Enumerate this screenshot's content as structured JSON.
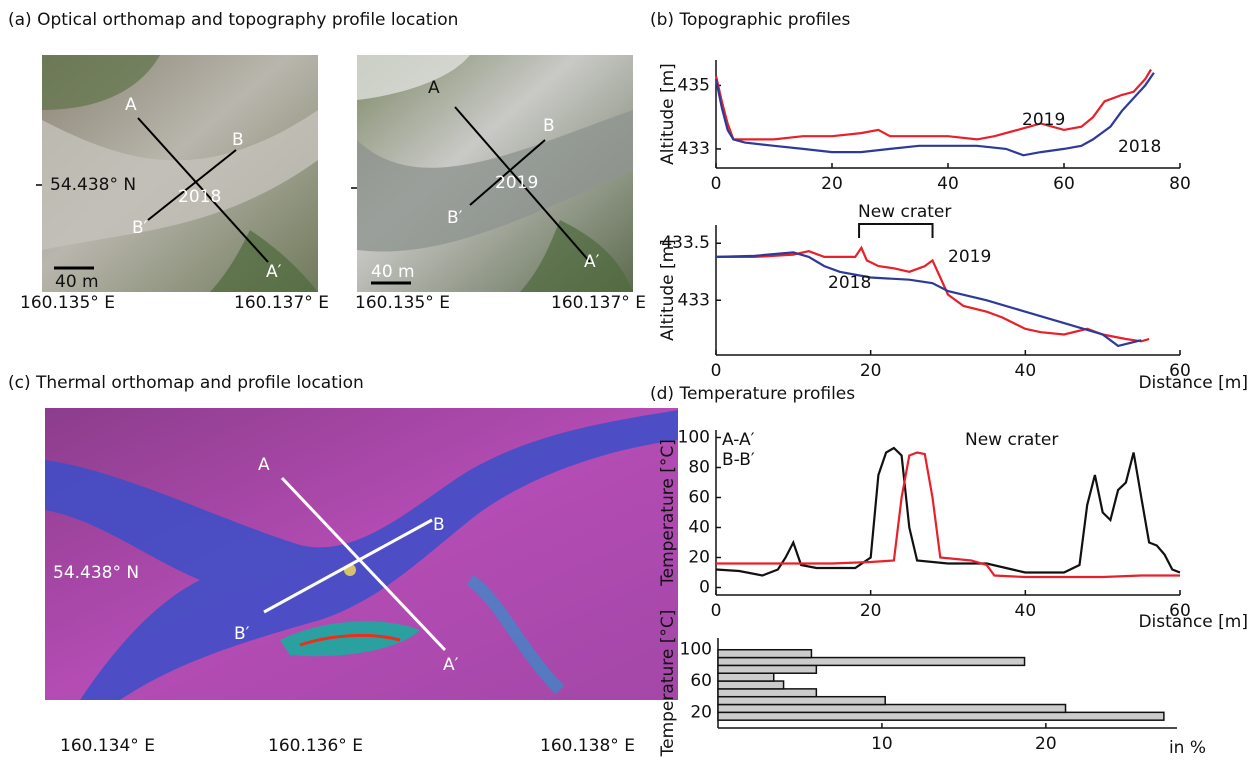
{
  "figure": {
    "panels": [
      "(a)  Optical orthomap and topography profile location",
      "(b)  Topographic profiles",
      "(c)  Thermal orthomap and profile location",
      "(d)  Temperature profiles"
    ]
  },
  "optical_maps": [
    {
      "year": "2018",
      "lat": "54.438° N",
      "scale": "40 m",
      "lon_labels": [
        "160.135° E",
        "160.137° E"
      ],
      "points": [
        "A",
        "B",
        "B′",
        "A′"
      ]
    },
    {
      "year": "2019",
      "scale": "40 m",
      "lon_labels": [
        "160.135° E",
        "160.137° E"
      ],
      "points": [
        "A",
        "B",
        "B′",
        "A′"
      ]
    }
  ],
  "thermal_map": {
    "lat": "54.438° N",
    "lon_labels": [
      "160.134° E",
      "160.136° E",
      "160.138° E"
    ],
    "points": [
      "A",
      "B",
      "B′",
      "A′"
    ]
  },
  "chart_data": [
    {
      "type": "line",
      "ylabel": "Altitude [m]",
      "xlim": [
        0,
        80
      ],
      "ylim": [
        432.4,
        435.8
      ],
      "xticks": [
        0,
        20,
        40,
        60,
        80
      ],
      "yticks": [
        433,
        435
      ],
      "series": [
        {
          "name": "2019",
          "color": "#e8202a",
          "x": [
            0,
            1,
            2,
            3,
            5,
            10,
            15,
            20,
            25,
            28,
            30,
            35,
            40,
            45,
            48,
            52,
            56,
            58,
            60,
            63,
            65,
            67,
            70,
            72,
            74,
            75
          ],
          "values": [
            435.3,
            434.5,
            433.8,
            433.3,
            433.3,
            433.3,
            433.4,
            433.4,
            433.5,
            433.6,
            433.4,
            433.4,
            433.4,
            433.3,
            433.4,
            433.6,
            433.8,
            433.7,
            433.6,
            433.7,
            434.0,
            434.5,
            434.7,
            434.8,
            435.2,
            435.5
          ]
        },
        {
          "name": "2018",
          "color": "#2e3a9a",
          "x": [
            0,
            1,
            2,
            3,
            5,
            10,
            15,
            20,
            25,
            30,
            35,
            40,
            45,
            50,
            53,
            56,
            60,
            63,
            65,
            68,
            70,
            72,
            74,
            75.5
          ],
          "values": [
            435.2,
            434.3,
            433.6,
            433.3,
            433.2,
            433.1,
            433.0,
            432.9,
            432.9,
            433.0,
            433.1,
            433.1,
            433.1,
            433.0,
            432.8,
            432.9,
            433.0,
            433.1,
            433.3,
            433.7,
            434.2,
            434.6,
            435.0,
            435.4
          ]
        }
      ]
    },
    {
      "type": "line",
      "ylabel": "Altitude [m]",
      "xlabel": "Distance [m]",
      "annotation": "New crater",
      "xlim": [
        0,
        60
      ],
      "ylim": [
        432.52,
        433.66
      ],
      "xticks": [
        0,
        20,
        40,
        60
      ],
      "yticks": [
        433,
        433.5
      ],
      "series": [
        {
          "name": "2019",
          "color": "#e8202a",
          "x": [
            0,
            5,
            10,
            12,
            14,
            16,
            18,
            18.8,
            19.5,
            21,
            23,
            25,
            27,
            28,
            29,
            30,
            32,
            35,
            37,
            40,
            42,
            45,
            48,
            50,
            53,
            55,
            56
          ],
          "values": [
            433.38,
            433.38,
            433.4,
            433.43,
            433.38,
            433.38,
            433.38,
            433.46,
            433.35,
            433.3,
            433.28,
            433.25,
            433.3,
            433.35,
            433.2,
            433.05,
            432.95,
            432.9,
            432.85,
            432.75,
            432.72,
            432.7,
            432.75,
            432.7,
            432.66,
            432.64,
            432.66
          ]
        },
        {
          "name": "2018",
          "color": "#2e3a9a",
          "x": [
            0,
            5,
            10,
            12,
            14,
            16,
            20,
            25,
            28,
            30,
            35,
            40,
            45,
            50,
            52,
            55
          ],
          "values": [
            433.38,
            433.39,
            433.42,
            433.38,
            433.3,
            433.25,
            433.2,
            433.18,
            433.15,
            433.08,
            433.0,
            432.9,
            432.8,
            432.7,
            432.6,
            432.65
          ]
        }
      ]
    },
    {
      "type": "line",
      "ylabel": "Temperature [°C]",
      "xlabel": "Distance [m]",
      "annotation": "New crater",
      "xlim": [
        0,
        60
      ],
      "ylim": [
        -5,
        105
      ],
      "xticks": [
        0,
        20,
        40,
        60
      ],
      "yticks": [
        0,
        20,
        40,
        60,
        80,
        100
      ],
      "series": [
        {
          "name": "A-A′",
          "color": "#111111",
          "x": [
            0,
            3,
            6,
            8,
            9,
            10,
            11,
            13,
            18,
            20,
            21,
            22,
            23,
            24,
            25,
            26,
            30,
            35,
            40,
            45,
            47,
            48,
            49,
            50,
            51,
            52,
            53,
            54,
            55,
            56,
            57,
            58,
            59,
            60
          ],
          "values": [
            12,
            11,
            8,
            12,
            20,
            30,
            15,
            13,
            13,
            20,
            75,
            90,
            93,
            88,
            40,
            18,
            16,
            16,
            10,
            10,
            15,
            55,
            75,
            50,
            45,
            65,
            70,
            90,
            60,
            30,
            28,
            22,
            12,
            10
          ]
        },
        {
          "name": "B-B′",
          "color": "#e8202a",
          "x": [
            0,
            10,
            15,
            20,
            23,
            24,
            25,
            26,
            27,
            28,
            29,
            33,
            35,
            36,
            40,
            50,
            55,
            60
          ],
          "values": [
            16,
            16,
            16,
            17,
            18,
            60,
            88,
            90,
            89,
            60,
            20,
            18,
            15,
            8,
            7,
            7,
            8,
            8
          ]
        }
      ]
    },
    {
      "type": "hbar-histogram",
      "ylabel": "Temperature [°C]",
      "xlabel": "in %",
      "color": "#cccccc",
      "xlim": [
        0,
        28
      ],
      "ylim": [
        0,
        115
      ],
      "xticks": [
        10,
        20
      ],
      "yticks": [
        20,
        60,
        100
      ],
      "bins": [
        10,
        20,
        30,
        40,
        50,
        60,
        70,
        80,
        90,
        100
      ],
      "values": [
        27.2,
        21.2,
        10.2,
        6,
        4,
        3.4,
        6,
        18.7,
        5.7
      ]
    }
  ]
}
